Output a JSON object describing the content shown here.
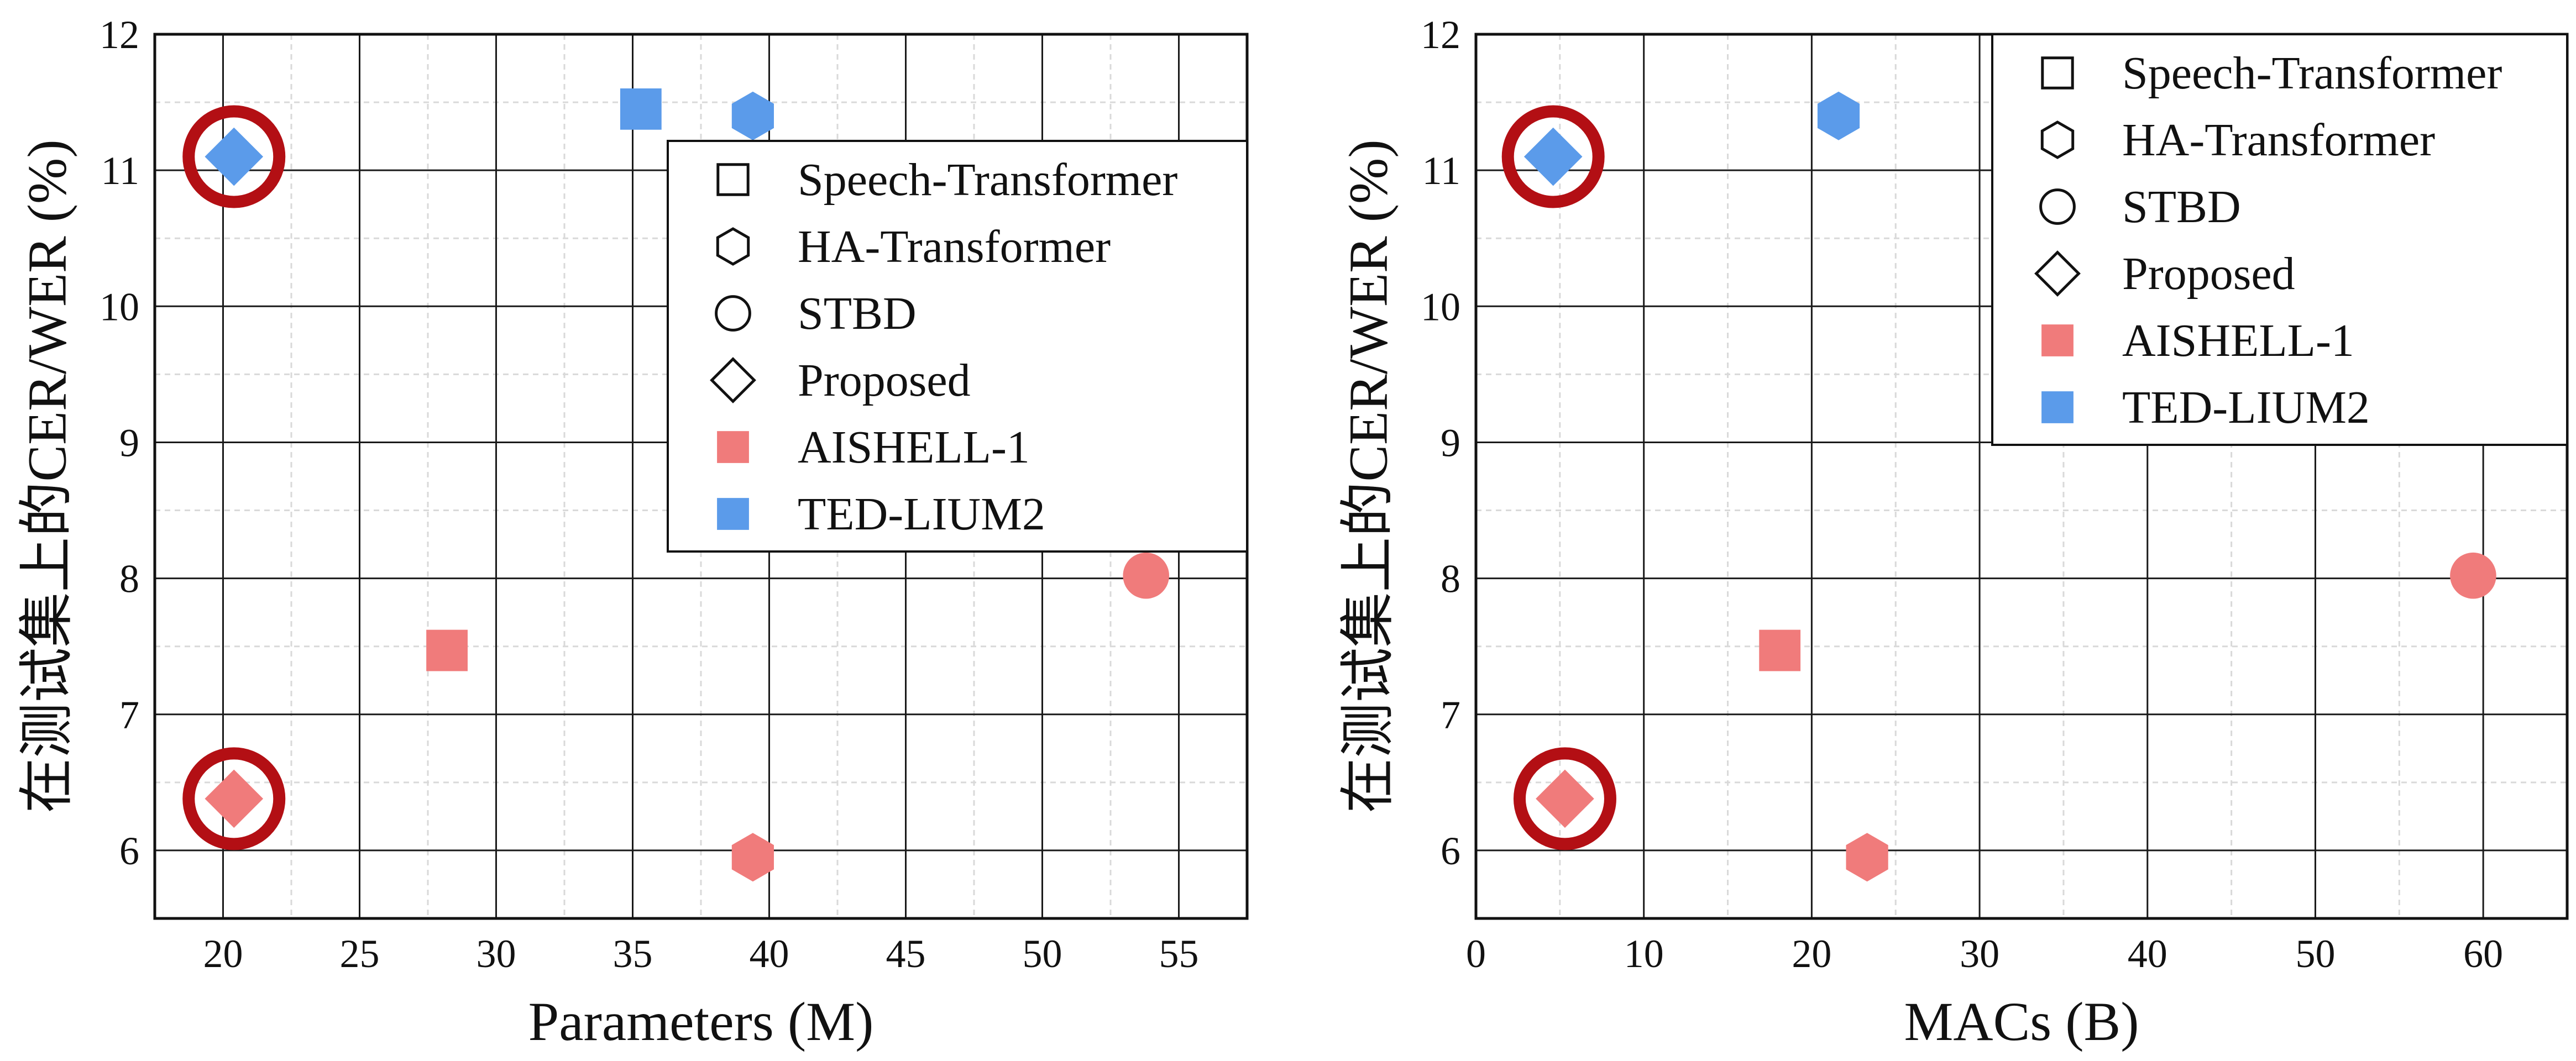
{
  "colors": {
    "aishell": "#F07B7B",
    "tedlium": "#5B9BEA",
    "highlight": "#B30F14",
    "grid_major": "#1a1a1a",
    "grid_minor": "#d9d9d9"
  },
  "legend": {
    "models": [
      {
        "label": "Speech-Transformer",
        "shape": "square"
      },
      {
        "label": "HA-Transformer",
        "shape": "hexagon"
      },
      {
        "label": "STBD",
        "shape": "circle"
      },
      {
        "label": "Proposed",
        "shape": "diamond"
      }
    ],
    "datasets": [
      {
        "label": "AISHELL-1",
        "color": "#F07B7B"
      },
      {
        "label": "TED-LIUM2",
        "color": "#5B9BEA"
      }
    ]
  },
  "chart_data": [
    {
      "type": "scatter",
      "xlabel": "Parameters (M)",
      "ylabel": "在测试集上的CER/WER (%)",
      "xlim": [
        17.5,
        57.5
      ],
      "ylim": [
        5.5,
        12
      ],
      "xticks": [
        20,
        25,
        30,
        35,
        40,
        45,
        50,
        55
      ],
      "yticks": [
        6,
        7,
        8,
        9,
        10,
        11,
        12
      ],
      "grid": true,
      "legend_position": "upper-right",
      "points": [
        {
          "model": "Speech-Transformer",
          "dataset": "AISHELL-1",
          "x": 28.2,
          "y": 7.47
        },
        {
          "model": "Speech-Transformer",
          "dataset": "TED-LIUM2",
          "x": 35.3,
          "y": 11.45
        },
        {
          "model": "HA-Transformer",
          "dataset": "AISHELL-1",
          "x": 39.4,
          "y": 5.95
        },
        {
          "model": "HA-Transformer",
          "dataset": "TED-LIUM2",
          "x": 39.4,
          "y": 11.4
        },
        {
          "model": "STBD",
          "dataset": "AISHELL-1",
          "x": 53.8,
          "y": 8.02
        },
        {
          "model": "Proposed",
          "dataset": "AISHELL-1",
          "x": 20.4,
          "y": 6.38,
          "highlighted": true
        },
        {
          "model": "Proposed",
          "dataset": "TED-LIUM2",
          "x": 20.4,
          "y": 11.1,
          "highlighted": true
        }
      ]
    },
    {
      "type": "scatter",
      "xlabel": "MACs (B)",
      "ylabel": "在测试集上的CER/WER (%)",
      "xlim": [
        0,
        65
      ],
      "ylim": [
        5.5,
        12
      ],
      "xticks": [
        0,
        10,
        20,
        30,
        40,
        50,
        60
      ],
      "yticks": [
        6,
        7,
        8,
        9,
        10,
        11,
        12
      ],
      "grid": true,
      "legend_position": "upper-right",
      "points": [
        {
          "model": "Speech-Transformer",
          "dataset": "AISHELL-1",
          "x": 18.1,
          "y": 7.47
        },
        {
          "model": "HA-Transformer",
          "dataset": "AISHELL-1",
          "x": 23.3,
          "y": 5.95
        },
        {
          "model": "HA-Transformer",
          "dataset": "TED-LIUM2",
          "x": 21.6,
          "y": 11.4
        },
        {
          "model": "STBD",
          "dataset": "AISHELL-1",
          "x": 59.4,
          "y": 8.02
        },
        {
          "model": "Proposed",
          "dataset": "AISHELL-1",
          "x": 5.3,
          "y": 6.38,
          "highlighted": true
        },
        {
          "model": "Proposed",
          "dataset": "TED-LIUM2",
          "x": 4.6,
          "y": 11.1,
          "highlighted": true
        }
      ]
    }
  ]
}
